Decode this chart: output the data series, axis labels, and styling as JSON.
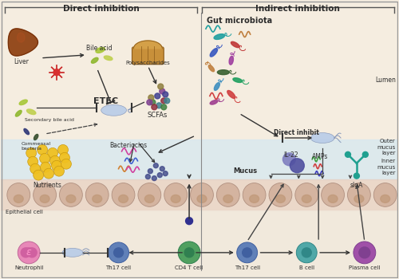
{
  "fig_width": 5.0,
  "fig_height": 3.5,
  "dpi": 100,
  "bg_color": "#f5ede0",
  "title_direct": "Direct inhibition",
  "title_indirect": "Indirect inhibition",
  "labels": {
    "liver": "Liver",
    "bile_acid": "Bile acid",
    "polysaccharides": "Polysaccharides",
    "secondary_bile_acid": "Secondary bile acid",
    "etec": "ETEC",
    "scfas": "SCFAs",
    "commensal_bacteria": "Commensal\nbacteria",
    "nutrients": "Nutrients",
    "bacteriocins": "Bacteriocins",
    "gut_microbiota": "Gut microbiota",
    "direct_inhibit": "Direct inhibit",
    "lumen": "Lumen",
    "outer_mucus": "Outer\nmucus\nlayer",
    "inner_mucus": "Inner\nmucus\nlayer",
    "il22": "IL-22",
    "mucus": "Mucus",
    "amps": "AMPs",
    "siga": "sIgA",
    "epithelial": "Epithelial cell",
    "neutrophil": "Neutrophil",
    "th17_left": "Th17 cell",
    "cd4": "CD4 T cell",
    "th17_right": "Th17 cell",
    "bcell": "B cell",
    "plasma": "Plasma cell"
  },
  "colors": {
    "bg": "#f5ede0",
    "inner_mucus_bg": "#d8e8f0",
    "epithelial_bg": "#e8d0c0",
    "below_bg": "#f0e8dc",
    "text_main": "#2c2c2c",
    "arrow": "#3a3a3a",
    "liver_color": "#8B3A0A",
    "bile_acid_color": "#a8c840",
    "etec_color": "#b0c8e8",
    "nutrient_color": "#f0c020",
    "bacteriocin_pink": "#d040a0",
    "bacteriocin_blue": "#4060d0",
    "bacteriocin_orange": "#d08030",
    "th17_color": "#6080b8",
    "cd4_color": "#50a060",
    "bcell_color": "#50a8a8",
    "plasma_color": "#a050a8",
    "neutrophil_color": "#e888b0",
    "siga_color": "#20a090"
  }
}
